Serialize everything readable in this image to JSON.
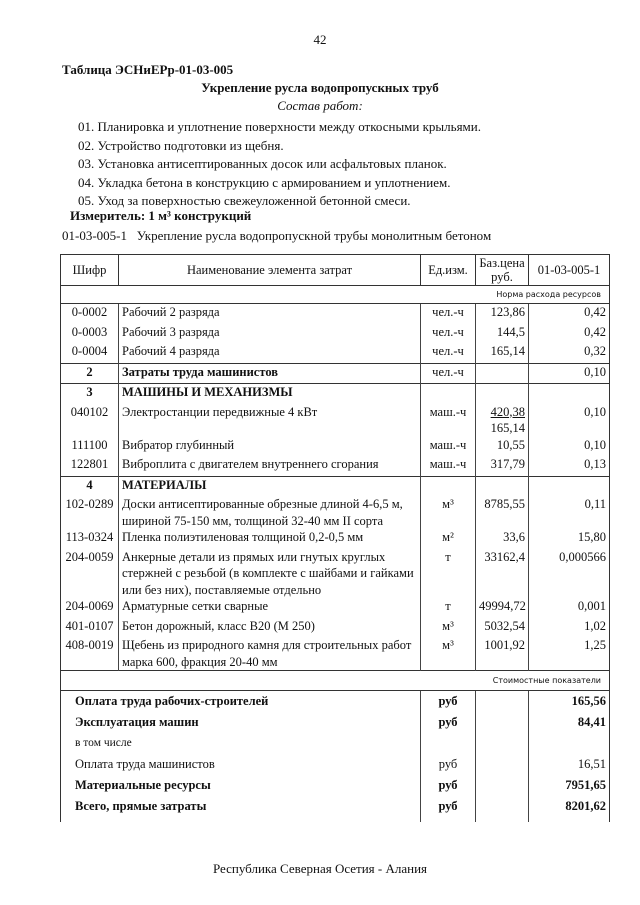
{
  "page_number": "42",
  "table_title": "Таблица  ЭСНиЕРр-01-03-005",
  "subtitle": "Укрепление русла водопропускных труб",
  "work_label": "Состав работ:",
  "work_items": [
    "01. Планировка и уплотнение поверхности между откосными крыльями.",
    "02. Устройство подготовки из щебня.",
    "03. Установка антисептированных досок или асфальтовых планок.",
    "04. Укладка бетона в конструкцию с армированием и уплотнением.",
    "05. Уход за поверхностью свежеуложенной бетонной смеси."
  ],
  "meter": "Измеритель: 1 м³ конструкций",
  "code_line": {
    "code": "01-03-005-1",
    "text": "Укрепление русла водопропускной трубы монолитным бетоном"
  },
  "headers": {
    "code": "Шифр",
    "name": "Наименование элемента затрат",
    "unit": "Ед.изм.",
    "price": "Баз.цена руб.",
    "norm": "01-03-005-1"
  },
  "norm_caption": "Норма расхода ресурсов",
  "rows": [
    {
      "code": "0-0002",
      "name": "Рабочий 2 разряда",
      "unit": "чел.-ч",
      "price": "123,86",
      "norm": "0,42"
    },
    {
      "code": "0-0003",
      "name": "Рабочий 3 разряда",
      "unit": "чел.-ч",
      "price": "144,5",
      "norm": "0,42"
    },
    {
      "code": "0-0004",
      "name": "Рабочий 4 разряда",
      "unit": "чел.-ч",
      "price": "165,14",
      "norm": "0,32"
    },
    {
      "code": "2",
      "name": "Затраты труда машинистов",
      "unit": "чел.-ч",
      "price": "",
      "norm": "0,10"
    },
    {
      "code": "3",
      "name": "МАШИНЫ И МЕХАНИЗМЫ",
      "unit": "",
      "price": "",
      "norm": ""
    },
    {
      "code": "040102",
      "name": "Электростанции передвижные 4 кВт",
      "unit": "маш.-ч",
      "price": "420,38",
      "price2": "165,14",
      "norm": "0,10"
    },
    {
      "code": "111100",
      "name": "Вибратор глубинный",
      "unit": "маш.-ч",
      "price": "10,55",
      "norm": "0,10"
    },
    {
      "code": "122801",
      "name": "Виброплита с двигателем внутреннего сгорания",
      "unit": "маш.-ч",
      "price": "317,79",
      "norm": "0,13"
    },
    {
      "code": "4",
      "name": "МАТЕРИАЛЫ",
      "unit": "",
      "price": "",
      "norm": ""
    },
    {
      "code": "102-0289",
      "name": "Доски антисептированные обрезные длиной 4-6,5 м, шириной 75-150 мм, толщиной 32-40 мм II сорта",
      "unit": "м³",
      "price": "8785,55",
      "norm": "0,11"
    },
    {
      "code": "113-0324",
      "name": "Пленка полиэтиленовая толщиной 0,2-0,5 мм",
      "unit": "м²",
      "price": "33,6",
      "norm": "15,80"
    },
    {
      "code": "204-0059",
      "name": "Анкерные детали из прямых или гнутых круглых стержней с резьбой (в комплекте с шайбами и гайками или без них), поставляемые отдельно",
      "unit": "т",
      "price": "33162,4",
      "norm": "0,000566"
    },
    {
      "code": "204-0069",
      "name": "Арматурные сетки сварные",
      "unit": "т",
      "price": "49994,72",
      "norm": "0,001"
    },
    {
      "code": "401-0107",
      "name": "Бетон дорожный, класс B20 (М 250)",
      "unit": "м³",
      "price": "5032,54",
      "norm": "1,02"
    },
    {
      "code": "408-0019",
      "name": "Щебень из природного камня для строительных работ марка 600, фракция 20-40 мм",
      "unit": "м³",
      "price": "1001,92",
      "norm": "1,25"
    }
  ],
  "cost_caption": "Стоимостные показатели",
  "totals": [
    {
      "name": "Оплата труда рабочих-строителей",
      "unit": "руб",
      "value": "165,56"
    },
    {
      "name": "Эксплуатация машин",
      "unit": "руб",
      "value": "84,41"
    },
    {
      "name": "в том числе",
      "unit": "",
      "value": ""
    },
    {
      "name": "Оплата труда машинистов",
      "unit": "руб",
      "value": "16,51"
    },
    {
      "name": "Материальные ресурсы",
      "unit": "руб",
      "value": "7951,65"
    },
    {
      "name": "Всего, прямые затраты",
      "unit": "руб",
      "value": "8201,62"
    }
  ],
  "footer": "Республика Северная Осетия - Алания"
}
